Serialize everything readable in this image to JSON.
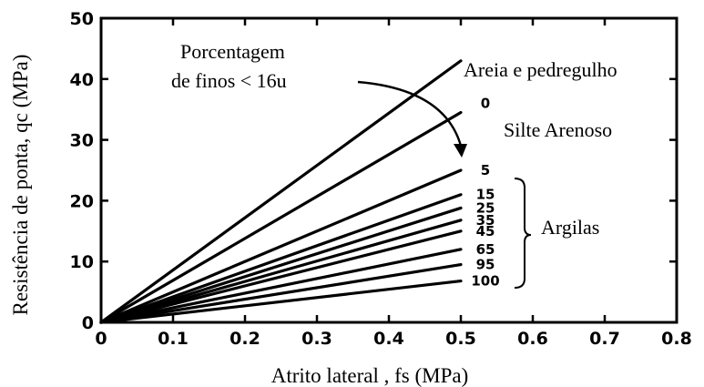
{
  "chart_data": {
    "type": "line",
    "xlabel": "Atrito lateral , fs (MPa)",
    "ylabel": "Resistência de ponta, qc (MPa)",
    "xlim": [
      0,
      0.8
    ],
    "ylim": [
      0,
      50
    ],
    "xticks": [
      "0",
      "0.1",
      "0.2",
      "0.3",
      "0.4",
      "0.5",
      "0.6",
      "0.7",
      "0.8"
    ],
    "yticks": [
      "0",
      "10",
      "20",
      "30",
      "40",
      "50"
    ],
    "grid": false,
    "series": [
      {
        "name": "Areia e pedregulho",
        "x": [
          0,
          0.5
        ],
        "y": [
          0,
          43
        ]
      },
      {
        "name": "0",
        "x": [
          0,
          0.5
        ],
        "y": [
          0,
          34.5
        ]
      },
      {
        "name": "5",
        "x": [
          0,
          0.5
        ],
        "y": [
          0,
          25
        ]
      },
      {
        "name": "15",
        "x": [
          0,
          0.5
        ],
        "y": [
          0,
          21
        ]
      },
      {
        "name": "25",
        "x": [
          0,
          0.5
        ],
        "y": [
          0,
          18.8
        ]
      },
      {
        "name": "35",
        "x": [
          0,
          0.5
        ],
        "y": [
          0,
          16.8
        ]
      },
      {
        "name": "45",
        "x": [
          0,
          0.5
        ],
        "y": [
          0,
          15
        ]
      },
      {
        "name": "65",
        "x": [
          0,
          0.5
        ],
        "y": [
          0,
          12
        ]
      },
      {
        "name": "95",
        "x": [
          0,
          0.5
        ],
        "y": [
          0,
          9.5
        ]
      },
      {
        "name": "100",
        "x": [
          0,
          0.5
        ],
        "y": [
          0,
          6.8
        ]
      }
    ],
    "annotations": {
      "percent_label_line1": "Porcentagem",
      "percent_label_line2": "de finos < 16u",
      "silt_label": "Silte Arenoso",
      "clay_label": "Argilas"
    }
  }
}
